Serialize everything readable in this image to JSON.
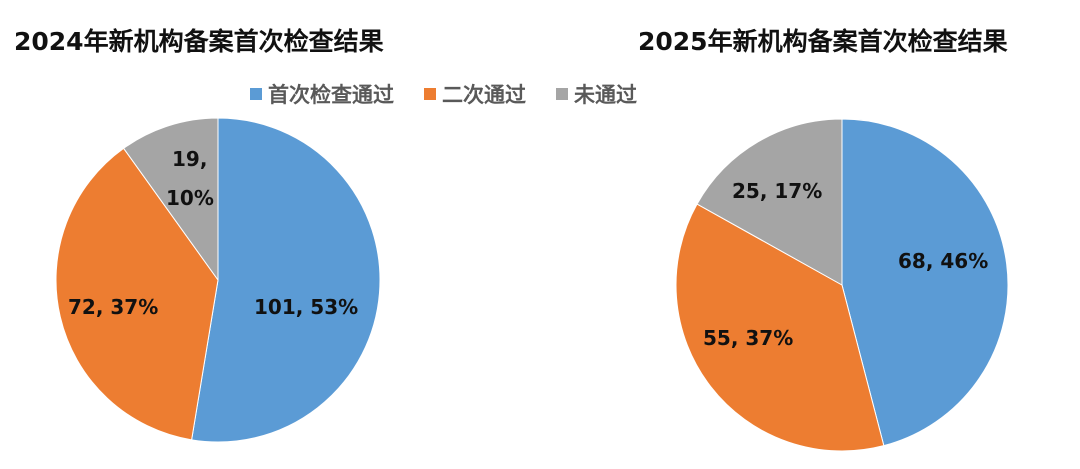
{
  "chart_data": [
    {
      "type": "pie",
      "title": "2024年新机构备案首次检查结果",
      "categories": [
        "首次检查通过",
        "二次通过",
        "未通过"
      ],
      "values": [
        101,
        72,
        19
      ],
      "percentages": [
        53,
        37,
        10
      ],
      "labels": [
        "101, 53%",
        "72, 37%",
        "19, 10%"
      ],
      "colors": [
        "#5B9BD5",
        "#ED7D31",
        "#A5A5A5"
      ]
    },
    {
      "type": "pie",
      "title": "2025年新机构备案首次检查结果",
      "categories": [
        "首次检查通过",
        "二次通过",
        "未通过"
      ],
      "values": [
        68,
        55,
        25
      ],
      "percentages": [
        46,
        37,
        17
      ],
      "labels": [
        "68, 46%",
        "55, 37%",
        "25, 17%"
      ],
      "colors": [
        "#5B9BD5",
        "#ED7D31",
        "#A5A5A5"
      ]
    }
  ],
  "titles": {
    "left": "2024年新机构备案首次检查结果",
    "right": "2025年新机构备案首次检查结果"
  },
  "legend": [
    {
      "label": "首次检查通过",
      "color": "#5B9BD5"
    },
    {
      "label": "二次通过",
      "color": "#ED7D31"
    },
    {
      "label": "未通过",
      "color": "#A5A5A5"
    }
  ],
  "left_labels": {
    "first": "101, 53%",
    "second": "72, 37%",
    "fail_line1": "19,",
    "fail_line2": "10%"
  },
  "right_labels": {
    "first": "68, 46%",
    "second": "55, 37%",
    "fail": "25, 17%"
  }
}
